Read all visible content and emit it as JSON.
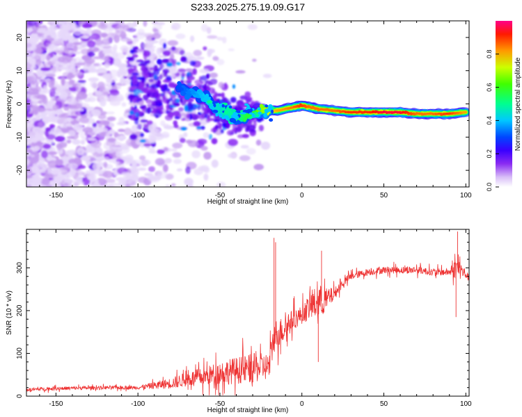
{
  "title": "S233.2025.275.19.09.G17",
  "chart_data": [
    {
      "type": "heatmap",
      "xlabel": "Height of straight line (km)",
      "ylabel": "Frequency (Hz)",
      "xlim": [
        -168,
        102
      ],
      "ylim": [
        -25,
        25
      ],
      "xticks": [
        -150,
        -100,
        -50,
        0,
        50,
        100
      ],
      "yticks": [
        -20,
        -10,
        0,
        10,
        20
      ],
      "colorbar": {
        "label": "Normalized spectral amplitude",
        "range": [
          0,
          1
        ],
        "ticks": [
          0.0,
          0.2,
          0.4,
          0.6,
          0.8
        ],
        "tick_labels": [
          "0.0",
          "0.2",
          "0.4",
          "0.6",
          "0.8"
        ],
        "colors": [
          "#ffffff",
          "#c49bf0",
          "#6a00ff",
          "#0000ff",
          "#00c8ff",
          "#00ff66",
          "#ccff00",
          "#ff8c00",
          "#ff0000",
          "#ff0088"
        ]
      },
      "ridge": {
        "x": [
          -75,
          -60,
          -50,
          -40,
          -30,
          -22,
          -15,
          -5,
          0,
          5,
          10,
          20,
          30,
          40,
          50,
          60,
          70,
          80,
          90,
          100
        ],
        "freq": [
          5,
          2,
          -2,
          -4,
          -3,
          -2,
          -2,
          -1,
          -0.5,
          -1,
          -1.5,
          -2,
          -2.5,
          -2.5,
          -2.5,
          -2.5,
          -3,
          -3,
          -3,
          -2.5
        ],
        "amplitude": [
          0.3,
          0.4,
          0.45,
          0.5,
          0.6,
          0.7,
          0.8,
          0.85,
          0.9,
          0.85,
          0.85,
          0.85,
          0.9,
          0.9,
          0.95,
          0.95,
          0.85,
          0.85,
          0.9,
          0.8
        ]
      },
      "noise_extent_x": [
        -168,
        -20
      ],
      "noise_amplitude": 0.05
    },
    {
      "type": "line",
      "xlabel": "Height of straight line (km)",
      "ylabel": "SNR (10 * v/v)",
      "xlim": [
        -168,
        102
      ],
      "ylim": [
        0,
        390
      ],
      "xticks": [
        -150,
        -100,
        -50,
        0,
        50,
        100
      ],
      "yticks": [
        0,
        100,
        200,
        300
      ],
      "series": [
        {
          "name": "SNR",
          "color": "#ee3333",
          "x": [
            -168,
            -150,
            -120,
            -100,
            -90,
            -80,
            -70,
            -60,
            -50,
            -40,
            -30,
            -20,
            -17,
            -10,
            -5,
            0,
            5,
            10,
            15,
            20,
            25,
            30,
            40,
            50,
            60,
            70,
            80,
            90,
            95,
            100,
            102
          ],
          "y": [
            15,
            18,
            20,
            20,
            25,
            30,
            40,
            45,
            55,
            60,
            65,
            70,
            140,
            160,
            180,
            190,
            210,
            220,
            225,
            240,
            265,
            280,
            290,
            295,
            295,
            295,
            290,
            290,
            300,
            285,
            275
          ],
          "noise": [
            6,
            6,
            6,
            6,
            12,
            18,
            25,
            30,
            40,
            45,
            50,
            45,
            55,
            40,
            35,
            30,
            45,
            60,
            40,
            20,
            15,
            12,
            12,
            12,
            12,
            12,
            12,
            12,
            40,
            15,
            12
          ]
        }
      ],
      "spikes": [
        {
          "x": -17,
          "y": 370
        },
        {
          "x": -16,
          "y": 360
        },
        {
          "x": 12,
          "y": 340
        },
        {
          "x": 10,
          "y": 80
        },
        {
          "x": 95,
          "y": 385
        },
        {
          "x": 94,
          "y": 185
        }
      ]
    }
  ]
}
